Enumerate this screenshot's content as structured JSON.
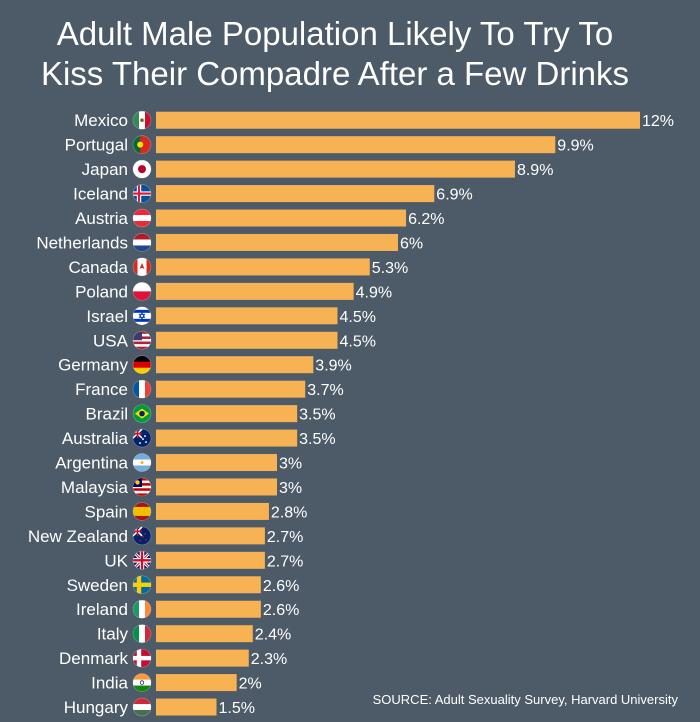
{
  "chart_data": {
    "type": "bar",
    "orientation": "horizontal",
    "title_lines": [
      "Adult Male Population Likely To Try To",
      "Kiss Their Compadre After a Few Drinks"
    ],
    "categories": [
      "Mexico",
      "Portugal",
      "Japan",
      "Iceland",
      "Austria",
      "Netherlands",
      "Canada",
      "Poland",
      "Israel",
      "USA",
      "Germany",
      "France",
      "Brazil",
      "Australia",
      "Argentina",
      "Malaysia",
      "Spain",
      "New Zealand",
      "UK",
      "Sweden",
      "Ireland",
      "Italy",
      "Denmark",
      "India",
      "Hungary"
    ],
    "values": [
      12,
      9.9,
      8.9,
      6.9,
      6.2,
      6,
      5.3,
      4.9,
      4.5,
      4.5,
      3.9,
      3.7,
      3.5,
      3.5,
      3,
      3,
      2.8,
      2.7,
      2.7,
      2.6,
      2.6,
      2.4,
      2.3,
      2,
      1.5
    ],
    "value_labels": [
      "12%",
      "9.9%",
      "8.9%",
      "6.9%",
      "6.2%",
      "6%",
      "5.3%",
      "4.9%",
      "4.5%",
      "4.5%",
      "3.9%",
      "3.7%",
      "3.5%",
      "3.5%",
      "3%",
      "3%",
      "2.8%",
      "2.7%",
      "2.7%",
      "2.6%",
      "2.6%",
      "2.4%",
      "2.3%",
      "2%",
      "1.5%"
    ],
    "flags": [
      "mexico-flag-icon",
      "portugal-flag-icon",
      "japan-flag-icon",
      "iceland-flag-icon",
      "austria-flag-icon",
      "netherlands-flag-icon",
      "canada-flag-icon",
      "poland-flag-icon",
      "israel-flag-icon",
      "usa-flag-icon",
      "germany-flag-icon",
      "france-flag-icon",
      "brazil-flag-icon",
      "australia-flag-icon",
      "argentina-flag-icon",
      "malaysia-flag-icon",
      "spain-flag-icon",
      "new-zealand-flag-icon",
      "uk-flag-icon",
      "sweden-flag-icon",
      "ireland-flag-icon",
      "italy-flag-icon",
      "denmark-flag-icon",
      "india-flag-icon",
      "hungary-flag-icon"
    ],
    "unit": "%",
    "xlim": [
      0,
      12
    ],
    "bar_color": "#f6b253",
    "source": "SOURCE: Adult Sexuality Survey, Harvard University"
  },
  "colors": {
    "background": "#4d5a68",
    "text": "#ffffff",
    "bar": "#f6b253"
  }
}
